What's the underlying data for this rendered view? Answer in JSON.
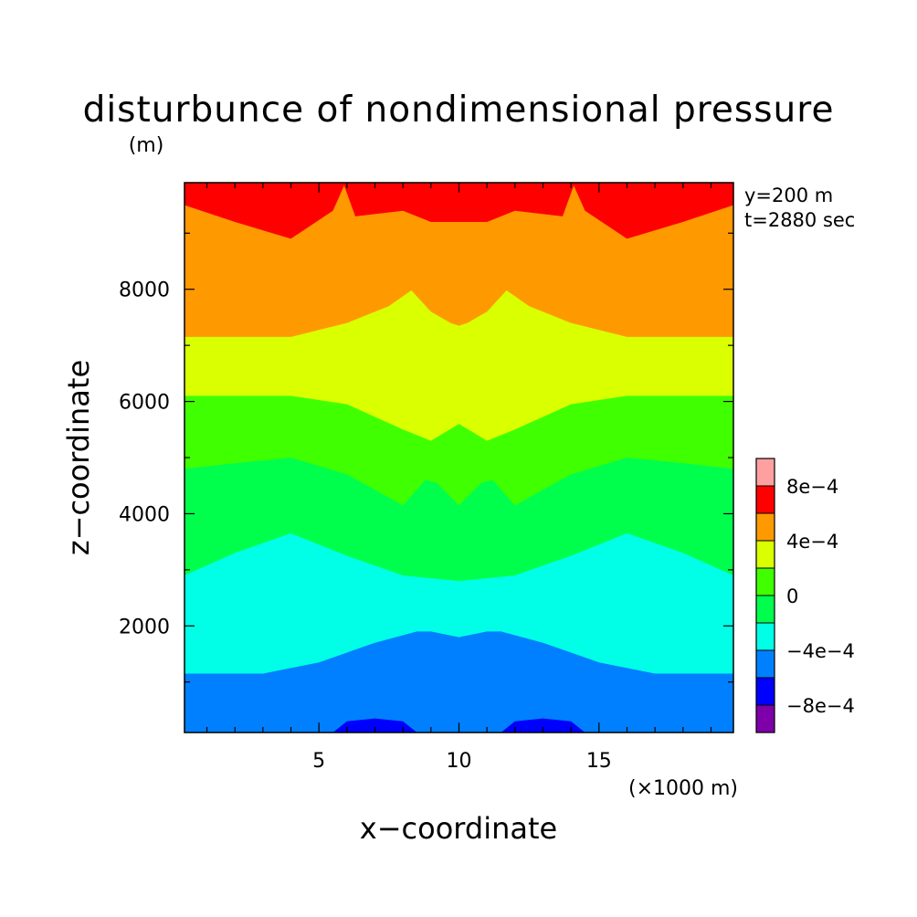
{
  "chart_data": {
    "type": "heatmap",
    "title": "disturbunce of nondimensional pressure",
    "xlabel": "x−coordinate",
    "ylabel": "z−coordinate",
    "x_unit": "(×1000 m)",
    "y_unit": "(m)",
    "xlim": [
      0.2,
      19.8
    ],
    "ylim": [
      100,
      9900
    ],
    "x_ticks": [
      5,
      10,
      15
    ],
    "x_minor_step": 1,
    "y_ticks": [
      2000,
      4000,
      6000,
      8000
    ],
    "y_ticks_text": [
      "2000",
      "4000",
      "6000",
      "8000"
    ],
    "y_minor_step": 1000,
    "annotations": [
      "y=200 m",
      "t=2880 sec"
    ],
    "grid": false,
    "legend": "colorbar-right",
    "colorbar": {
      "levels": [
        -0.001,
        -0.0008,
        -0.0006,
        -0.0004,
        -0.0002,
        0.0,
        0.0002,
        0.0004,
        0.0006,
        0.0008,
        0.001
      ],
      "colors": [
        "#7d00a8",
        "#0000ff",
        "#0080ff",
        "#00ffe6",
        "#00ff4c",
        "#40ff00",
        "#d9ff00",
        "#ff9900",
        "#ff0000",
        "#ffa0a0"
      ],
      "tick_values": [
        -0.0008,
        -0.0004,
        0.0,
        0.0004,
        0.0008
      ],
      "tick_labels": [
        "−8e−4",
        "−4e−4",
        "0",
        "4e−4",
        "8e−4"
      ]
    },
    "contour_boundaries": [
      {
        "name": "-8e-4",
        "x": [
          5.5,
          6.0,
          7.0,
          8.0,
          8.5
        ],
        "z": [
          100,
          300,
          350,
          300,
          100
        ],
        "mirror": true
      },
      {
        "name": "-6e-4",
        "x": [
          0.2,
          3.0,
          5.0,
          7.0,
          8.5,
          9.0,
          10.0
        ],
        "z": [
          1150,
          1150,
          1350,
          1700,
          1900,
          1900,
          1800
        ]
      },
      {
        "name": "-4e-4",
        "x": [
          0.2,
          2.0,
          4.0,
          6.0,
          8.0,
          9.0,
          10.0
        ],
        "z": [
          2900,
          3300,
          3650,
          3250,
          2900,
          2850,
          2800
        ]
      },
      {
        "name": "-2e-4",
        "x": [
          0.2,
          2.0,
          4.0,
          6.0,
          8.0,
          8.8,
          9.2,
          10.0
        ],
        "z": [
          4800,
          4900,
          5000,
          4700,
          4150,
          4600,
          4550,
          4150
        ]
      },
      {
        "name": "0",
        "x": [
          0.2,
          4.0,
          6.0,
          8.0,
          9.0,
          10.0
        ],
        "z": [
          6100,
          6100,
          5950,
          5500,
          5300,
          5600
        ]
      },
      {
        "name": "2e-4",
        "x": [
          0.2,
          4.0,
          6.0,
          7.5,
          8.3,
          9.0,
          9.7,
          10.0
        ],
        "z": [
          7150,
          7150,
          7400,
          7700,
          7980,
          7600,
          7400,
          7350
        ]
      },
      {
        "name": "4e-4",
        "x": [
          0.2,
          2.0,
          4.0,
          5.5,
          5.9,
          6.3,
          8.0,
          9.0,
          10.0
        ],
        "z": [
          9500,
          9200,
          8900,
          9400,
          9850,
          9300,
          9400,
          9200,
          9200
        ]
      }
    ]
  }
}
